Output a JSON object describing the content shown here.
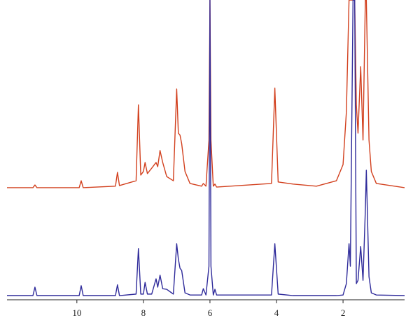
{
  "chart_data": {
    "type": "line",
    "x": [
      12.1,
      11.32,
      11.26,
      11.2,
      9.93,
      9.87,
      9.81,
      8.84,
      8.78,
      8.72,
      8.22,
      8.15,
      8.08,
      8.0,
      7.95,
      7.88,
      7.75,
      7.62,
      7.57,
      7.5,
      7.42,
      7.3,
      7.1,
      7.0,
      6.95,
      6.9,
      6.85,
      6.75,
      6.6,
      6.25,
      6.2,
      6.12,
      6.03,
      6.0,
      5.97,
      5.9,
      5.85,
      5.8,
      4.15,
      4.05,
      3.95,
      3.5,
      2.8,
      2.2,
      2.0,
      1.9,
      1.82,
      1.78,
      1.7,
      1.65,
      1.6,
      1.55,
      1.47,
      1.4,
      1.33,
      1.3,
      1.22,
      1.15,
      1.0,
      0.15
    ],
    "series": [
      {
        "color": "#d2401e",
        "values": [
          37.4,
          37.4,
          38.3,
          37.4,
          37.4,
          39.7,
          37.4,
          37.9,
          42.5,
          38.1,
          39.7,
          65.0,
          41.6,
          42.8,
          45.8,
          42.1,
          43.9,
          45.8,
          44.4,
          49.8,
          45.8,
          41.1,
          39.7,
          70.3,
          55.6,
          54.9,
          52.1,
          42.8,
          38.8,
          37.9,
          38.8,
          37.9,
          53.3,
          100,
          53.3,
          37.9,
          38.6,
          37.6,
          38.8,
          70.6,
          39.3,
          38.6,
          37.9,
          39.7,
          45.1,
          62.6,
          100,
          100,
          100,
          100,
          65.0,
          55.6,
          77.8,
          53.3,
          100,
          100,
          53.3,
          42.8,
          38.8,
          37.4
        ]
      },
      {
        "color": "#2e2a9a",
        "values": [
          1.4,
          1.4,
          4.2,
          1.4,
          1.4,
          4.7,
          1.4,
          1.4,
          5.0,
          1.4,
          1.9,
          17.1,
          1.9,
          1.9,
          5.8,
          1.9,
          1.9,
          7.0,
          4.2,
          8.2,
          3.7,
          3.5,
          1.9,
          18.7,
          13.6,
          10.5,
          9.8,
          2.3,
          1.6,
          1.6,
          3.7,
          1.6,
          11.2,
          100,
          11.2,
          1.6,
          3.5,
          1.6,
          1.6,
          18.7,
          1.9,
          1.4,
          1.4,
          1.4,
          1.6,
          5.4,
          18.7,
          11.2,
          100,
          100,
          5.4,
          6.5,
          17.8,
          6.5,
          29.9,
          43.2,
          7.7,
          2.3,
          1.6,
          1.4
        ]
      }
    ],
    "xlim": [
      12.1,
      0.15
    ],
    "xticks": [
      10,
      8,
      6,
      4,
      2
    ],
    "ylim": [
      0,
      100
    ]
  }
}
